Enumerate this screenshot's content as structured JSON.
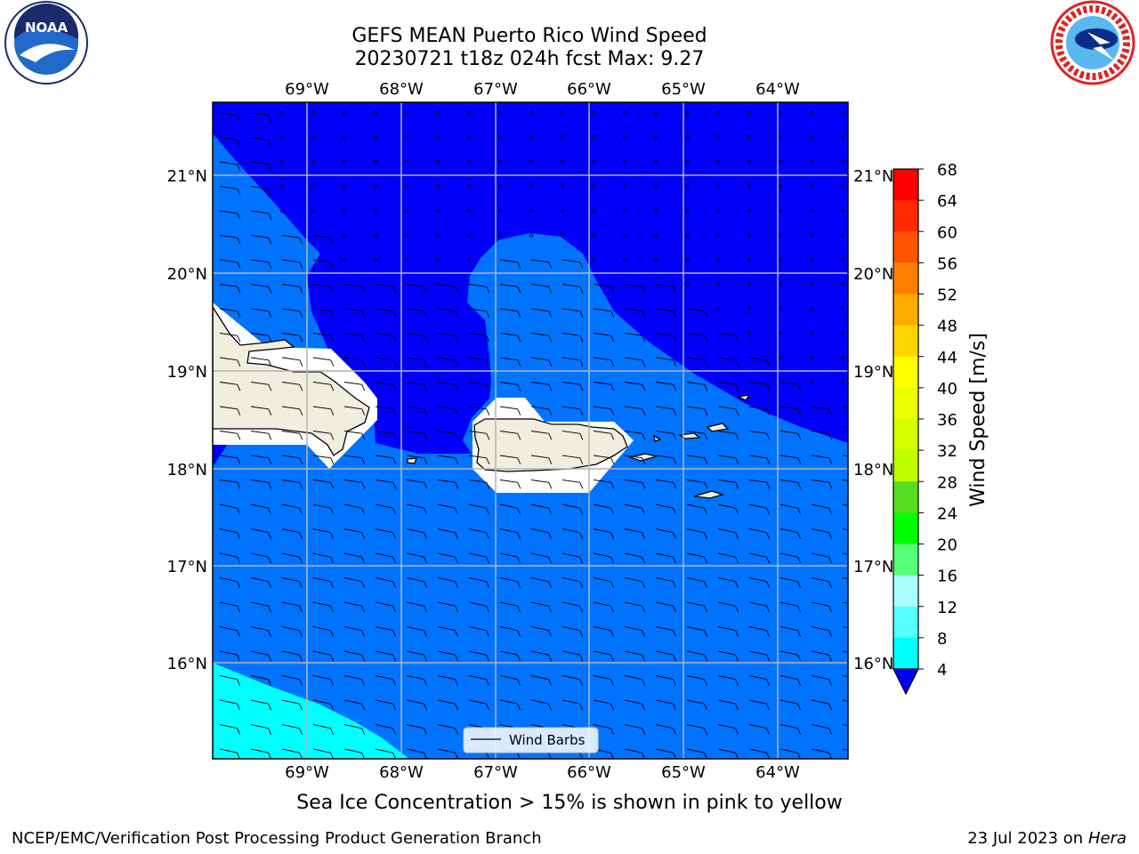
{
  "title": {
    "line1": "GEFS MEAN Puerto Rico Wind Speed",
    "line2": "20230721 t18z 024h fcst   Max: 9.27"
  },
  "logos": {
    "left": {
      "text": "NOAA",
      "ring_text": "NATIONAL OCEANIC AND ATMOSPHERIC ADMINISTRATION · U.S. DEPARTMENT OF COMMERCE"
    },
    "right": {
      "ring_text": "NATIONAL WEATHER SERVICE"
    }
  },
  "map": {
    "lon_labels": [
      "69°W",
      "68°W",
      "67°W",
      "66°W",
      "65°W",
      "64°W"
    ],
    "lat_labels": [
      "21°N",
      "20°N",
      "19°N",
      "18°N",
      "17°N",
      "16°N"
    ],
    "colors": {
      "band_4": "#0000f8",
      "band_4_8": "#0073ff",
      "band_8_12": "#00ffff",
      "land": "#efeedf",
      "mask": "#ffffff",
      "grid": "#b4b4b4"
    },
    "legend": {
      "label": "Wind Barbs"
    }
  },
  "colorbar": {
    "label": "Wind Speed [m/s]",
    "ticks": [
      "68",
      "64",
      "60",
      "56",
      "52",
      "48",
      "44",
      "40",
      "36",
      "32",
      "28",
      "24",
      "20",
      "16",
      "12",
      "8",
      "4"
    ],
    "colors": [
      "#ff0000",
      "#ff2a00",
      "#ff5500",
      "#ff8000",
      "#ffaa00",
      "#ffd500",
      "#ffff00",
      "#eaff00",
      "#d4ff00",
      "#bfff00",
      "#55dd22",
      "#00ff00",
      "#55ff77",
      "#aaffff",
      "#55ffff",
      "#00ffff",
      "#0073ff"
    ],
    "under_color": "#0000f8"
  },
  "note": "Sea Ice Concentration > 15% is shown in pink to yellow",
  "footer": {
    "left": "NCEP/EMC/Verification Post Processing Product Generation Branch",
    "date": "23 Jul 2023 on",
    "machine": "Hera"
  }
}
